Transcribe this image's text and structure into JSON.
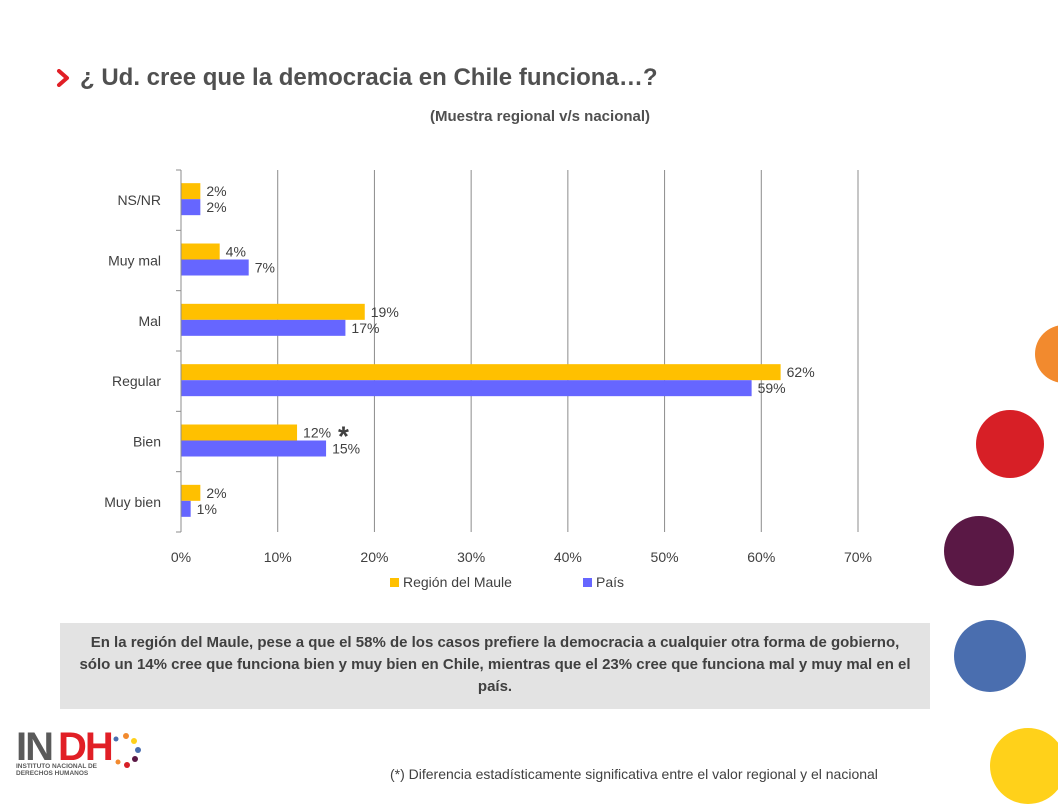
{
  "header": {
    "title": "¿ Ud. cree que la democracia en Chile funciona…?",
    "subtitle": "(Muestra regional v/s nacional)"
  },
  "chart_data": {
    "type": "bar",
    "orientation": "horizontal",
    "categories": [
      "NS/NR",
      "Muy mal",
      "Mal",
      "Regular",
      "Bien",
      "Muy bien"
    ],
    "series": [
      {
        "name": "Región del Maule",
        "color": "#FFC000",
        "values": [
          2,
          4,
          19,
          62,
          12,
          2
        ],
        "labels": [
          "2%",
          "4%",
          "19%",
          "62%",
          "12%",
          "2%"
        ]
      },
      {
        "name": "País",
        "color": "#6666FF",
        "values": [
          2,
          7,
          17,
          59,
          15,
          1
        ],
        "labels": [
          "2%",
          "7%",
          "17%",
          "59%",
          "15%",
          "1%"
        ]
      }
    ],
    "xlim": [
      0,
      70
    ],
    "xticks": [
      "0%",
      "10%",
      "20%",
      "30%",
      "40%",
      "50%",
      "60%",
      "70%"
    ],
    "grid": true,
    "legend_position": "bottom",
    "annotation": {
      "category": "Bien",
      "text": "*"
    }
  },
  "summary": {
    "text": "En la región del Maule, pese a que el 58% de los casos prefiere la democracia a cualquier otra forma de gobierno, sólo un 14% cree que funciona bien y muy bien en Chile, mientras que el 23% cree que funciona mal y muy mal en el país."
  },
  "footnote": {
    "text": "(*) Diferencia estadísticamente significativa entre el valor regional y el nacional"
  },
  "logo": {
    "wordmark": "INDH",
    "line1": "INSTITUTO NACIONAL DE",
    "line2": "DERECHOS HUMANOS"
  },
  "decor": {
    "circle_colors": [
      "#F28A2E",
      "#D71F26",
      "#5A1845",
      "#4A6EAF",
      "#FFD11A"
    ],
    "chevron_color": "#E11F26"
  }
}
